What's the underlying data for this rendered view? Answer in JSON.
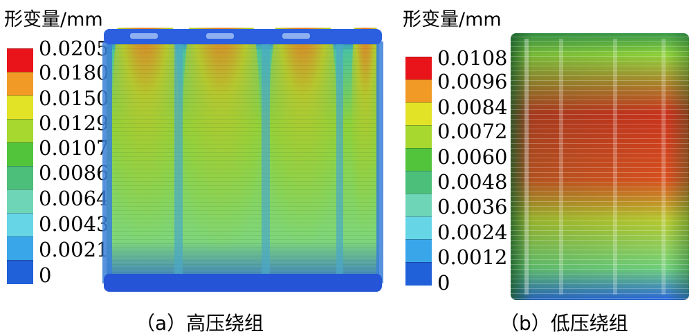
{
  "panels": [
    {
      "unit_title": "形变量/mm",
      "caption": "（a）高压绕组",
      "legend_ticks": [
        "0.0205",
        "0.0180",
        "0.0150",
        "0.0129",
        "0.0107",
        "0.0086",
        "0.0064",
        "0.0043",
        "0.0021",
        "0"
      ],
      "legend_colors": [
        "#e8141a",
        "#f29a26",
        "#e2e227",
        "#a6d830",
        "#52c43c",
        "#4cbf7a",
        "#6ed6b6",
        "#66d6e6",
        "#3aa6ea",
        "#2060d8"
      ],
      "model_description_icon": "high-voltage-winding-deformation-contour"
    },
    {
      "unit_title": "形变量/mm",
      "caption": "（b）低压绕组",
      "legend_ticks": [
        "0.0108",
        "0.0096",
        "0.0084",
        "0.0072",
        "0.0060",
        "0.0048",
        "0.0036",
        "0.0024",
        "0.0012",
        "0"
      ],
      "legend_colors": [
        "#e8141a",
        "#f29a26",
        "#e2e227",
        "#a6d830",
        "#52c43c",
        "#4cbf7a",
        "#6ed6b6",
        "#66d6e6",
        "#3aa6ea",
        "#2060d8"
      ],
      "model_description_icon": "low-voltage-winding-deformation-contour"
    }
  ]
}
